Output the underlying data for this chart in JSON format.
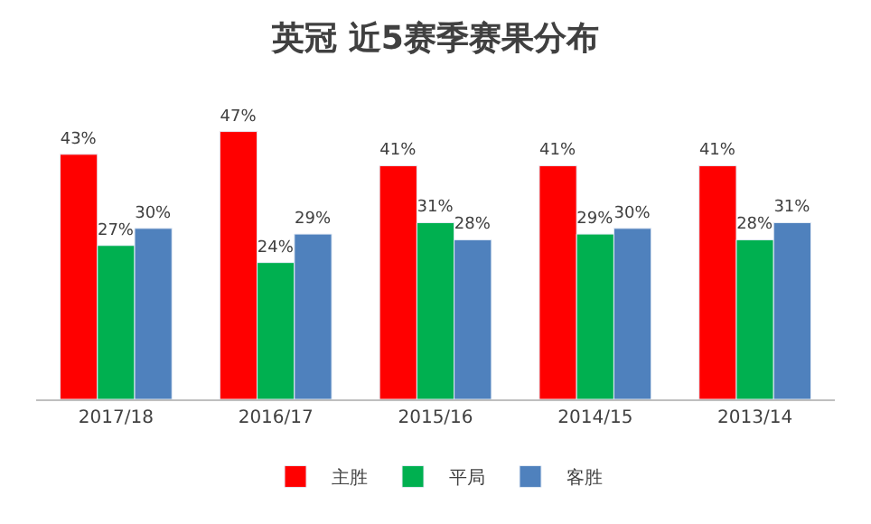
{
  "chart_data": {
    "type": "bar",
    "title": "英冠 近5赛季赛果分布",
    "categories": [
      "2017/18",
      "2016/17",
      "2015/16",
      "2014/15",
      "2013/14"
    ],
    "series": [
      {
        "name": "主胜",
        "color": "#ff0000",
        "values": [
          43,
          47,
          41,
          41,
          41
        ],
        "value_labels": [
          "43%",
          "47%",
          "41%",
          "41%",
          "41%"
        ]
      },
      {
        "name": "平局",
        "color": "#00b050",
        "values": [
          27,
          24,
          31,
          29,
          28
        ],
        "value_labels": [
          "27%",
          "24%",
          "31%",
          "29%",
          "28%"
        ]
      },
      {
        "name": "客胜",
        "color": "#4f81bd",
        "values": [
          30,
          29,
          28,
          30,
          31
        ],
        "value_labels": [
          "30%",
          "29%",
          "28%",
          "30%",
          "31%"
        ]
      }
    ],
    "legend": "bottom"
  }
}
